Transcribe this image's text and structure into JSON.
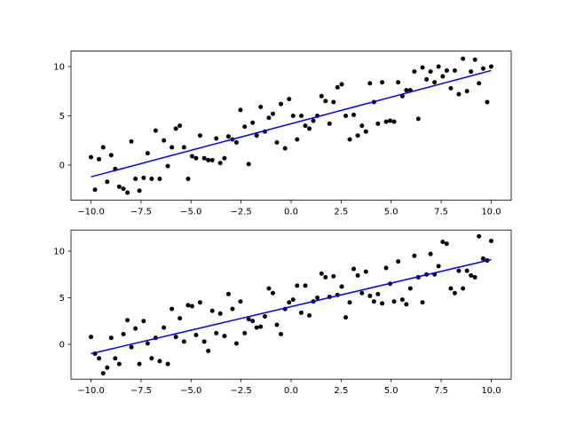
{
  "chart_data": [
    {
      "type": "scatter",
      "xlim": [
        -11,
        11
      ],
      "ylim": [
        -3.57,
        11.57
      ],
      "xticks": [
        {
          "value": -10,
          "label": "−10.0"
        },
        {
          "value": -7.5,
          "label": "−7.5"
        },
        {
          "value": -5,
          "label": "−5.0"
        },
        {
          "value": -2.5,
          "label": "−2.5"
        },
        {
          "value": 0,
          "label": "0.0"
        },
        {
          "value": 2.5,
          "label": "2.5"
        },
        {
          "value": 5,
          "label": "5.0"
        },
        {
          "value": 7.5,
          "label": "7.5"
        },
        {
          "value": 10,
          "label": "10.0"
        }
      ],
      "yticks": [
        0,
        5,
        10
      ],
      "series": [
        {
          "type": "scatter",
          "color": "#000000",
          "x": [
            -10,
            -9.8,
            -9.6,
            -9.39,
            -9.19,
            -8.99,
            -8.79,
            -8.59,
            -8.38,
            -8.18,
            -7.98,
            -7.78,
            -7.58,
            -7.37,
            -7.17,
            -6.97,
            -6.77,
            -6.57,
            -6.36,
            -6.16,
            -5.96,
            -5.76,
            -5.56,
            -5.35,
            -5.15,
            -4.95,
            -4.75,
            -4.55,
            -4.34,
            -4.14,
            -3.94,
            -3.74,
            -3.54,
            -3.33,
            -3.13,
            -2.93,
            -2.73,
            -2.53,
            -2.32,
            -2.12,
            -1.92,
            -1.72,
            -1.52,
            -1.31,
            -1.11,
            -0.91,
            -0.71,
            -0.51,
            -0.3,
            -0.1,
            0.1,
            0.3,
            0.51,
            0.71,
            0.91,
            1.11,
            1.31,
            1.52,
            1.72,
            1.92,
            2.12,
            2.32,
            2.53,
            2.73,
            2.93,
            3.13,
            3.33,
            3.54,
            3.74,
            3.94,
            4.14,
            4.34,
            4.55,
            4.75,
            4.95,
            5.15,
            5.35,
            5.56,
            5.76,
            5.96,
            6.16,
            6.36,
            6.57,
            6.77,
            6.97,
            7.17,
            7.37,
            7.58,
            7.78,
            7.98,
            8.18,
            8.38,
            8.59,
            8.79,
            8.99,
            9.19,
            9.39,
            9.6,
            9.8,
            10
          ],
          "values": [
            0.8,
            -2.5,
            0.6,
            1.8,
            -1.7,
            1.0,
            -0.4,
            -2.2,
            -2.4,
            -2.8,
            2.4,
            -1.4,
            -2.6,
            -1.3,
            1.2,
            -1.4,
            3.5,
            -1.4,
            2.5,
            -0.1,
            1.8,
            3.7,
            4.0,
            1.8,
            -1.4,
            0.9,
            0.7,
            3.0,
            0.7,
            0.5,
            0.5,
            2.7,
            0.2,
            0.7,
            2.9,
            2.6,
            2.3,
            5.6,
            3.9,
            0.1,
            4.3,
            3.0,
            5.9,
            3.4,
            4.8,
            5.2,
            2.3,
            6.2,
            1.7,
            6.7,
            5.0,
            2.6,
            5.0,
            4.0,
            3.7,
            4.5,
            5.0,
            7.0,
            6.5,
            4.2,
            6.4,
            7.9,
            8.2,
            5.0,
            2.6,
            5.1,
            3.0,
            4.0,
            3.4,
            8.3,
            6.4,
            4.2,
            8.4,
            4.4,
            4.5,
            4.4,
            8.4,
            7.0,
            7.6,
            7.6,
            9.5,
            4.7,
            9.9,
            8.7,
            9.5,
            8.4,
            10.0,
            9.0,
            9.6,
            7.8,
            9.6,
            7.2,
            10.8,
            7.5,
            9.5,
            10.7,
            8.3,
            9.8,
            6.4,
            10.0
          ]
        },
        {
          "type": "line",
          "color": "#0000ff",
          "x": [
            -10,
            10
          ],
          "values": [
            -1.2,
            9.6
          ]
        }
      ]
    },
    {
      "type": "scatter",
      "xlim": [
        -11,
        11
      ],
      "ylim": [
        -3.73,
        12.27
      ],
      "xticks": [
        {
          "value": -10,
          "label": "−10.0"
        },
        {
          "value": -7.5,
          "label": "−7.5"
        },
        {
          "value": -5,
          "label": "−5.0"
        },
        {
          "value": -2.5,
          "label": "−2.5"
        },
        {
          "value": 0,
          "label": "0.0"
        },
        {
          "value": 2.5,
          "label": "2.5"
        },
        {
          "value": 5,
          "label": "5.0"
        },
        {
          "value": 7.5,
          "label": "7.5"
        },
        {
          "value": 10,
          "label": "10.0"
        }
      ],
      "yticks": [
        0,
        5,
        10
      ],
      "series": [
        {
          "type": "scatter",
          "color": "#000000",
          "x": [
            -10,
            -9.8,
            -9.6,
            -9.39,
            -9.19,
            -8.99,
            -8.79,
            -8.59,
            -8.38,
            -8.18,
            -7.98,
            -7.78,
            -7.58,
            -7.37,
            -7.17,
            -6.97,
            -6.77,
            -6.57,
            -6.36,
            -6.16,
            -5.96,
            -5.76,
            -5.56,
            -5.35,
            -5.15,
            -4.95,
            -4.75,
            -4.55,
            -4.34,
            -4.14,
            -3.94,
            -3.74,
            -3.54,
            -3.33,
            -3.13,
            -2.93,
            -2.73,
            -2.53,
            -2.32,
            -2.12,
            -1.92,
            -1.72,
            -1.52,
            -1.31,
            -1.11,
            -0.91,
            -0.71,
            -0.51,
            -0.3,
            -0.1,
            0.1,
            0.3,
            0.51,
            0.71,
            0.91,
            1.11,
            1.31,
            1.52,
            1.72,
            1.92,
            2.12,
            2.32,
            2.53,
            2.73,
            2.93,
            3.13,
            3.33,
            3.54,
            3.74,
            3.94,
            4.14,
            4.34,
            4.55,
            4.75,
            4.95,
            5.15,
            5.35,
            5.56,
            5.76,
            5.96,
            6.16,
            6.36,
            6.57,
            6.77,
            6.97,
            7.17,
            7.37,
            7.58,
            7.78,
            7.98,
            8.18,
            8.38,
            8.59,
            8.79,
            8.99,
            9.19,
            9.39,
            9.6,
            9.8,
            10
          ],
          "values": [
            0.8,
            -1.0,
            -1.5,
            -3.1,
            -2.5,
            0.7,
            -1.5,
            -2.1,
            1.1,
            2.6,
            -0.3,
            1.7,
            -2.1,
            2.5,
            0.1,
            -1.5,
            0.7,
            -1.8,
            1.8,
            -2.1,
            3.8,
            0.8,
            2.8,
            0.3,
            4.2,
            4.1,
            1.0,
            4.5,
            0.3,
            -0.7,
            3.6,
            1.2,
            3.3,
            0.9,
            5.4,
            3.8,
            0.1,
            4.6,
            1.2,
            2.7,
            2.5,
            1.8,
            1.9,
            3.0,
            6.0,
            5.5,
            2.1,
            1.1,
            3.8,
            4.5,
            4.8,
            6.3,
            3.4,
            6.3,
            3.1,
            4.6,
            5.0,
            7.6,
            7.2,
            5.1,
            7.3,
            5.3,
            6.2,
            2.9,
            4.5,
            8.1,
            7.4,
            5.5,
            7.8,
            5.2,
            4.6,
            5.4,
            4.4,
            8.2,
            6.5,
            4.6,
            8.9,
            4.8,
            4.3,
            6.0,
            9.5,
            7.2,
            4.5,
            7.5,
            9.7,
            7.5,
            8.4,
            11.0,
            10.8,
            6.0,
            5.5,
            7.9,
            6.0,
            7.9,
            7.4,
            7.2,
            11.6,
            9.2,
            9.0,
            11.1
          ]
        },
        {
          "type": "line",
          "color": "#0000ff",
          "x": [
            -10,
            10
          ],
          "values": [
            -1.0,
            9.1
          ]
        }
      ]
    }
  ]
}
